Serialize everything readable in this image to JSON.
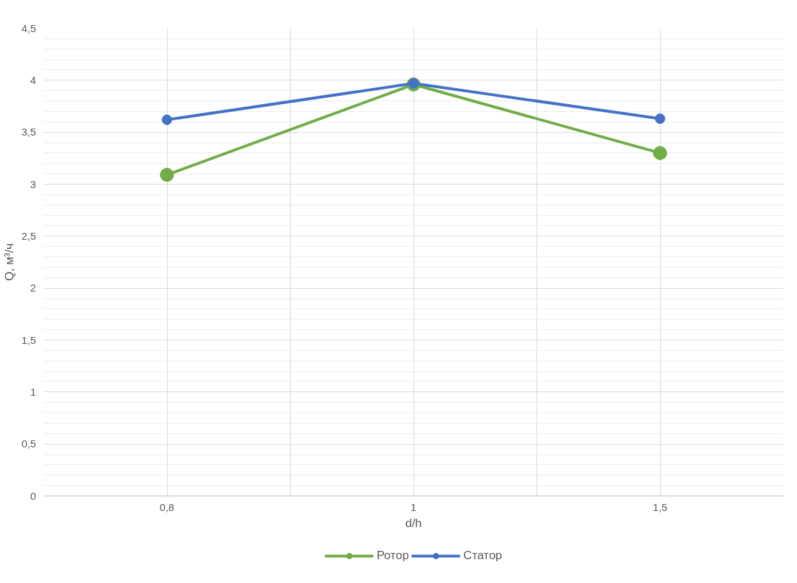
{
  "chart_data": {
    "type": "line",
    "xlabel": "d/h",
    "ylabel": "Q, м³/ч",
    "categories": [
      "0,8",
      "1",
      "1,5"
    ],
    "series": [
      {
        "name": "Ротор",
        "color": "#70ad47",
        "values": [
          3.09,
          3.96,
          3.3
        ]
      },
      {
        "name": "Статор",
        "color": "#4472c4",
        "values": [
          3.62,
          3.97,
          3.63
        ]
      }
    ],
    "ylim": [
      0,
      4.5
    ],
    "yticks": [
      0,
      {
        "value": 0.5,
        "label": "0,5"
      },
      1,
      {
        "value": 1.5,
        "label": "1,5"
      },
      2,
      {
        "value": 2.5,
        "label": "2,5"
      },
      3,
      {
        "value": 3.5,
        "label": "3,5"
      },
      4,
      {
        "value": 4.5,
        "label": "4,5"
      }
    ],
    "grid": true,
    "legend": "bottom",
    "marker": "circle",
    "line_style": "solid"
  }
}
